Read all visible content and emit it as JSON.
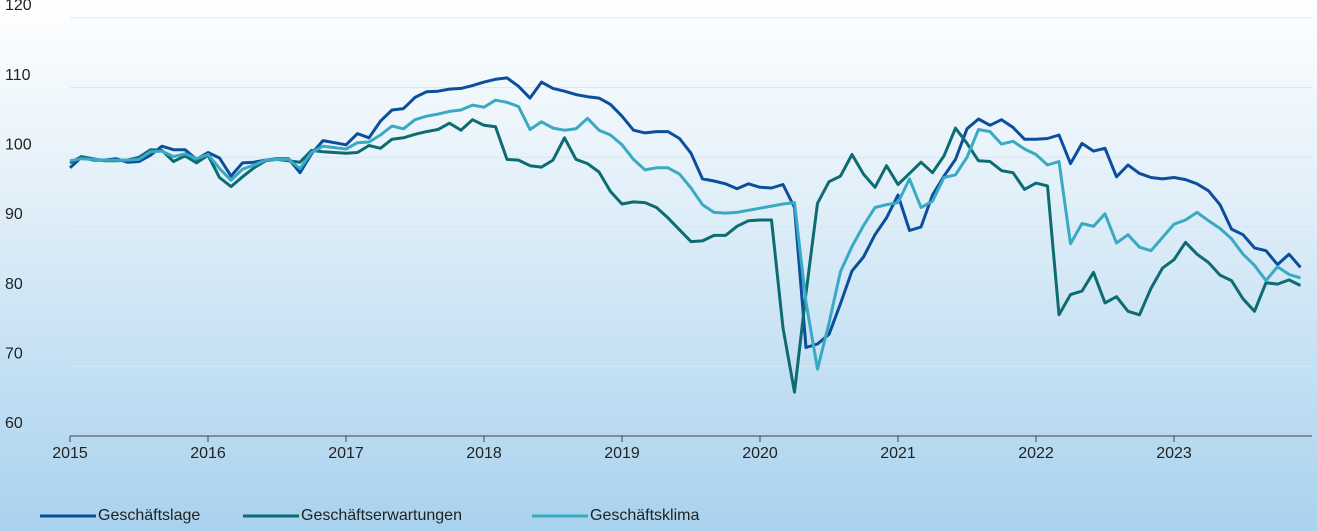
{
  "chart_data": {
    "type": "line",
    "categories": [
      "2015",
      null,
      null,
      null,
      null,
      null,
      null,
      null,
      null,
      null,
      null,
      null,
      "2016",
      null,
      null,
      null,
      null,
      null,
      null,
      null,
      null,
      null,
      null,
      null,
      "2017",
      null,
      null,
      null,
      null,
      null,
      null,
      null,
      null,
      null,
      null,
      null,
      "2018",
      null,
      null,
      null,
      null,
      null,
      null,
      null,
      null,
      null,
      null,
      null,
      "2019",
      null,
      null,
      null,
      null,
      null,
      null,
      null,
      null,
      null,
      null,
      null,
      "2020",
      null,
      null,
      null,
      null,
      null,
      null,
      null,
      null,
      null,
      null,
      null,
      "2021",
      null,
      null,
      null,
      null,
      null,
      null,
      null,
      null,
      null,
      null,
      null,
      "2022",
      null,
      null,
      null,
      null,
      null,
      null,
      null,
      null,
      null,
      null,
      null,
      "2023",
      null,
      null,
      null,
      null,
      null,
      null,
      null,
      null,
      null,
      null,
      null
    ],
    "series": [
      {
        "name": "Geschäftslage",
        "color": "#0b4f9c",
        "values": [
          98.5,
          100,
          99.6,
          99.6,
          99.8,
          99.3,
          99.4,
          100.3,
          101.6,
          101.1,
          101.1,
          99.7,
          100.7,
          99.9,
          97.3,
          99.2,
          99.3,
          99.6,
          99.8,
          99.8,
          97.8,
          100.5,
          102.4,
          102.1,
          101.8,
          103.4,
          102.8,
          105.2,
          106.8,
          107,
          108.6,
          109.4,
          109.5,
          109.8,
          109.9,
          110.3,
          110.8,
          111.2,
          111.4,
          110.2,
          108.5,
          110.8,
          109.9,
          109.5,
          109,
          108.7,
          108.5,
          107.6,
          105.9,
          103.9,
          103.5,
          103.7,
          103.7,
          102.7,
          100.6,
          96.9,
          96.6,
          96.2,
          95.5,
          96.2,
          95.7,
          95.6,
          96.1,
          92.8,
          72.7,
          73.2,
          74.6,
          79,
          83.7,
          85.7,
          88.9,
          91.3,
          94.6,
          89.5,
          90,
          94.6,
          97.3,
          99.7,
          104.1,
          105.5,
          104.6,
          105.4,
          104.3,
          102.6,
          102.6,
          102.7,
          103.2,
          99.1,
          102,
          100.9,
          101.3,
          97.2,
          98.9,
          97.7,
          97.1,
          96.9,
          97.1,
          96.8,
          96.2,
          95.2,
          93.2,
          89.7,
          88.9,
          87,
          86.6,
          84.6,
          86.1,
          84.2
        ]
      },
      {
        "name": "Geschäftserwartungen",
        "color": "#0e6b72",
        "values": [
          99.2,
          100.1,
          99.8,
          99.5,
          99.5,
          99.6,
          100,
          101.1,
          101,
          99.4,
          100.2,
          99.2,
          100.3,
          97.1,
          95.8,
          97.2,
          98.5,
          99.5,
          99.7,
          99.5,
          99.3,
          101,
          100.8,
          100.7,
          100.6,
          100.7,
          101.7,
          101.3,
          102.6,
          102.8,
          103.3,
          103.7,
          104,
          104.9,
          103.9,
          105.4,
          104.6,
          104.4,
          99.7,
          99.6,
          98.8,
          98.6,
          99.6,
          102.8,
          99.7,
          99.1,
          97.9,
          95.1,
          93.3,
          93.6,
          93.5,
          92.8,
          91.3,
          89.6,
          87.9,
          88,
          88.8,
          88.8,
          90.1,
          90.9,
          91,
          91,
          75.5,
          66.3,
          80.5,
          93.4,
          96.5,
          97.3,
          100.4,
          97.6,
          95.7,
          98.8,
          96.1,
          97.7,
          99.3,
          97.8,
          100.2,
          104.2,
          102,
          99.5,
          99.4,
          98.1,
          97.8,
          95.4,
          96.3,
          95.9,
          77.4,
          80.3,
          80.8,
          83.5,
          79.1,
          80,
          77.9,
          77.4,
          81.2,
          84.1,
          85.3,
          87.8,
          86.1,
          84.9,
          83.1,
          82.3,
          79.7,
          77.9,
          82,
          81.8,
          82.4,
          81.6
        ]
      },
      {
        "name": "Geschäftsklima",
        "color": "#3aa9c2",
        "values": [
          99.5,
          99.8,
          99.7,
          99.6,
          99.6,
          99.6,
          99.7,
          100.8,
          100.9,
          100.1,
          100.5,
          99.8,
          100.4,
          98.4,
          96.7,
          98.3,
          98.9,
          99.6,
          99.7,
          99.7,
          98.4,
          100.7,
          101.6,
          101.4,
          101.2,
          102.1,
          102.2,
          103.2,
          104.5,
          104.1,
          105.4,
          105.9,
          106.2,
          106.6,
          106.8,
          107.5,
          107.2,
          108.2,
          107.9,
          107.3,
          104,
          105.1,
          104.2,
          103.9,
          104.1,
          105.6,
          103.9,
          103.2,
          101.8,
          99.7,
          98.2,
          98.5,
          98.5,
          97.6,
          95.6,
          93.2,
          92.1,
          92,
          92.1,
          92.4,
          92.7,
          93,
          93.3,
          93.5,
          79.2,
          69.6,
          76.2,
          83.6,
          87.2,
          90.2,
          92.8,
          93.2,
          93.5,
          96.9,
          92.8,
          93.7,
          97.1,
          97.5,
          100,
          104,
          103.7,
          101.9,
          102.3,
          101.2,
          100.4,
          98.9,
          99.4,
          87.6,
          90.5,
          90.1,
          91.9,
          87.7,
          88.9,
          87.1,
          86.6,
          88.5,
          90.4,
          91,
          92.1,
          90.9,
          89.8,
          88.3,
          86.1,
          84.5,
          82.3,
          84.3,
          83.2,
          82.7
        ]
      }
    ],
    "ylim": [
      60,
      120
    ],
    "yticks": [
      60,
      70,
      80,
      90,
      100,
      110,
      120
    ],
    "grid": true
  }
}
